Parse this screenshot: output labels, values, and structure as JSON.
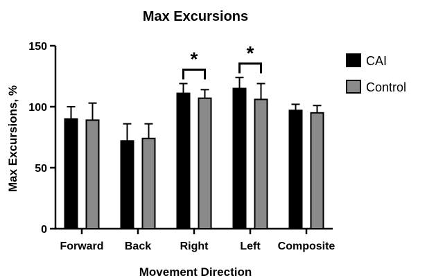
{
  "chart_data": {
    "type": "bar",
    "title": "Max Excursions",
    "xlabel": "Movement Direction",
    "ylabel": "Max Excursions, %",
    "ylim": [
      0,
      150
    ],
    "yticks": [
      0,
      50,
      100,
      150
    ],
    "categories": [
      "Forward",
      "Back",
      "Right",
      "Left",
      "Composite"
    ],
    "series": [
      {
        "name": "CAI",
        "color": "#000000",
        "values": [
          90,
          72,
          111,
          115,
          97
        ],
        "errors": [
          10,
          14,
          8,
          9,
          5
        ]
      },
      {
        "name": "Control",
        "color": "#8a8a8a",
        "values": [
          89,
          74,
          107,
          106,
          95
        ],
        "errors": [
          14,
          12,
          7,
          13,
          6
        ]
      }
    ],
    "annotations": [
      {
        "category": "Right",
        "text": "*"
      },
      {
        "category": "Left",
        "text": "*"
      }
    ],
    "legend_position": "right",
    "grid": false
  }
}
